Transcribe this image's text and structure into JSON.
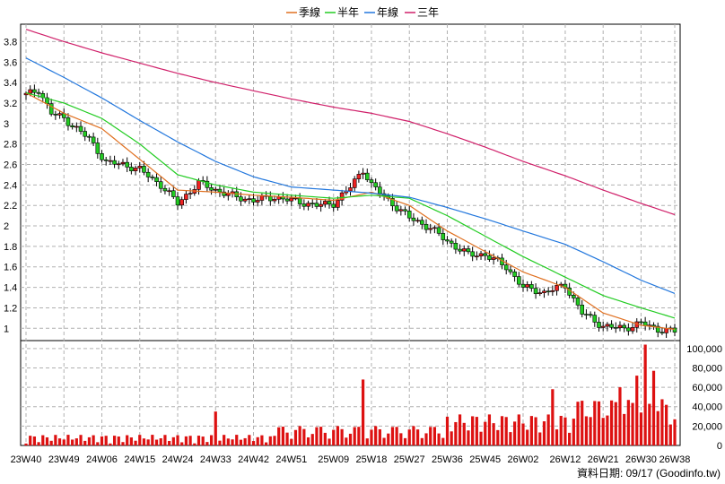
{
  "legend": [
    {
      "label": "季線",
      "color": "#e07020"
    },
    {
      "label": "半年",
      "color": "#22cc22"
    },
    {
      "label": "年線",
      "color": "#2277dd"
    },
    {
      "label": "三年",
      "color": "#d0206a"
    }
  ],
  "source_text": "資料日期: 09/17  (Goodinfo.tw)",
  "colors": {
    "up": "#ee2222",
    "down": "#22cc22",
    "volume": "#dd1111",
    "grid": "#b0b0b0"
  },
  "chart_data": [
    {
      "type": "candlestick",
      "title": "",
      "xlabel": "",
      "ylabel": "",
      "ylim": [
        0.88,
        3.97
      ],
      "y_ticks": [
        1,
        1.2,
        1.4,
        1.6,
        1.8,
        2,
        2.2,
        2.4,
        2.6,
        2.8,
        3,
        3.2,
        3.4,
        3.6,
        3.8
      ],
      "x_ticks": [
        "23W40",
        "23W49",
        "24W06",
        "24W15",
        "24W24",
        "24W33",
        "24W42",
        "24W51",
        "25W09",
        "25W18",
        "25W27",
        "25W36",
        "25W45",
        "26W02",
        "26W12",
        "26W21",
        "26W30",
        "26W38"
      ],
      "grid": true,
      "close_approx": [
        {
          "week": "23W40",
          "value": 3.28
        },
        {
          "week": "23W43",
          "value": 3.33
        },
        {
          "week": "23W46",
          "value": 3.1
        },
        {
          "week": "23W49",
          "value": 3.05
        },
        {
          "week": "24W03",
          "value": 2.85
        },
        {
          "week": "24W07",
          "value": 2.62
        },
        {
          "week": "24W11",
          "value": 2.6
        },
        {
          "week": "24W15",
          "value": 2.55
        },
        {
          "week": "24W20",
          "value": 2.4
        },
        {
          "week": "24W24",
          "value": 2.22
        },
        {
          "week": "24W29",
          "value": 2.42
        },
        {
          "week": "24W33",
          "value": 2.35
        },
        {
          "week": "24W38",
          "value": 2.28
        },
        {
          "week": "24W42",
          "value": 2.25
        },
        {
          "week": "24W47",
          "value": 2.28
        },
        {
          "week": "24W51",
          "value": 2.25
        },
        {
          "week": "25W05",
          "value": 2.2
        },
        {
          "week": "25W09",
          "value": 2.22
        },
        {
          "week": "25W13",
          "value": 2.38
        },
        {
          "week": "25W16",
          "value": 2.55
        },
        {
          "week": "25W18",
          "value": 2.4
        },
        {
          "week": "25W22",
          "value": 2.25
        },
        {
          "week": "25W27",
          "value": 2.08
        },
        {
          "week": "25W32",
          "value": 1.98
        },
        {
          "week": "25W36",
          "value": 1.85
        },
        {
          "week": "25W41",
          "value": 1.72
        },
        {
          "week": "25W45",
          "value": 1.72
        },
        {
          "week": "25W50",
          "value": 1.6
        },
        {
          "week": "26W02",
          "value": 1.4
        },
        {
          "week": "26W07",
          "value": 1.35
        },
        {
          "week": "26W12",
          "value": 1.42
        },
        {
          "week": "26W16",
          "value": 1.15
        },
        {
          "week": "26W21",
          "value": 1.02
        },
        {
          "week": "26W26",
          "value": 1.0
        },
        {
          "week": "26W30",
          "value": 1.05
        },
        {
          "week": "26W34",
          "value": 0.99
        },
        {
          "week": "26W38",
          "value": 0.97
        }
      ],
      "series": [
        {
          "name": "季線",
          "values": [
            {
              "week": "23W40",
              "value": 3.3
            },
            {
              "week": "23W49",
              "value": 3.1
            },
            {
              "week": "24W06",
              "value": 2.95
            },
            {
              "week": "24W15",
              "value": 2.65
            },
            {
              "week": "24W24",
              "value": 2.35
            },
            {
              "week": "24W33",
              "value": 2.33
            },
            {
              "week": "24W42",
              "value": 2.3
            },
            {
              "week": "24W51",
              "value": 2.28
            },
            {
              "week": "25W09",
              "value": 2.25
            },
            {
              "week": "25W18",
              "value": 2.33
            },
            {
              "week": "25W27",
              "value": 2.2
            },
            {
              "week": "25W36",
              "value": 1.95
            },
            {
              "week": "25W45",
              "value": 1.75
            },
            {
              "week": "26W02",
              "value": 1.55
            },
            {
              "week": "26W12",
              "value": 1.4
            },
            {
              "week": "26W21",
              "value": 1.15
            },
            {
              "week": "26W30",
              "value": 1.03
            },
            {
              "week": "26W38",
              "value": 0.99
            }
          ]
        },
        {
          "name": "半年",
          "values": [
            {
              "week": "23W40",
              "value": 3.3
            },
            {
              "week": "23W49",
              "value": 3.2
            },
            {
              "week": "24W06",
              "value": 3.05
            },
            {
              "week": "24W15",
              "value": 2.8
            },
            {
              "week": "24W24",
              "value": 2.5
            },
            {
              "week": "24W33",
              "value": 2.4
            },
            {
              "week": "24W42",
              "value": 2.33
            },
            {
              "week": "24W51",
              "value": 2.3
            },
            {
              "week": "25W09",
              "value": 2.27
            },
            {
              "week": "25W18",
              "value": 2.3
            },
            {
              "week": "25W27",
              "value": 2.27
            },
            {
              "week": "25W36",
              "value": 2.1
            },
            {
              "week": "25W45",
              "value": 1.9
            },
            {
              "week": "26W02",
              "value": 1.7
            },
            {
              "week": "26W12",
              "value": 1.5
            },
            {
              "week": "26W21",
              "value": 1.32
            },
            {
              "week": "26W30",
              "value": 1.2
            },
            {
              "week": "26W38",
              "value": 1.1
            }
          ]
        },
        {
          "name": "年線",
          "values": [
            {
              "week": "23W40",
              "value": 3.64
            },
            {
              "week": "23W49",
              "value": 3.45
            },
            {
              "week": "24W06",
              "value": 3.25
            },
            {
              "week": "24W15",
              "value": 3.03
            },
            {
              "week": "24W24",
              "value": 2.82
            },
            {
              "week": "24W33",
              "value": 2.63
            },
            {
              "week": "24W42",
              "value": 2.48
            },
            {
              "week": "24W51",
              "value": 2.38
            },
            {
              "week": "25W09",
              "value": 2.35
            },
            {
              "week": "25W18",
              "value": 2.32
            },
            {
              "week": "25W27",
              "value": 2.28
            },
            {
              "week": "25W36",
              "value": 2.18
            },
            {
              "week": "25W45",
              "value": 2.07
            },
            {
              "week": "26W02",
              "value": 1.95
            },
            {
              "week": "26W12",
              "value": 1.82
            },
            {
              "week": "26W21",
              "value": 1.65
            },
            {
              "week": "26W30",
              "value": 1.47
            },
            {
              "week": "26W38",
              "value": 1.34
            }
          ]
        },
        {
          "name": "三年",
          "values": [
            {
              "week": "23W40",
              "value": 3.92
            },
            {
              "week": "23W49",
              "value": 3.8
            },
            {
              "week": "24W06",
              "value": 3.69
            },
            {
              "week": "24W15",
              "value": 3.59
            },
            {
              "week": "24W24",
              "value": 3.49
            },
            {
              "week": "24W33",
              "value": 3.4
            },
            {
              "week": "24W42",
              "value": 3.32
            },
            {
              "week": "24W51",
              "value": 3.24
            },
            {
              "week": "25W09",
              "value": 3.16
            },
            {
              "week": "25W18",
              "value": 3.1
            },
            {
              "week": "25W27",
              "value": 3.02
            },
            {
              "week": "25W36",
              "value": 2.9
            },
            {
              "week": "25W45",
              "value": 2.77
            },
            {
              "week": "26W02",
              "value": 2.63
            },
            {
              "week": "26W12",
              "value": 2.49
            },
            {
              "week": "26W21",
              "value": 2.35
            },
            {
              "week": "26W30",
              "value": 2.22
            },
            {
              "week": "26W38",
              "value": 2.11
            }
          ]
        }
      ]
    },
    {
      "type": "bar",
      "title": "",
      "ylim": [
        0,
        110000
      ],
      "y_ticks": [
        0,
        20000,
        40000,
        60000,
        80000,
        100000
      ],
      "y_tick_labels": [
        "0",
        "20,000",
        "40,000",
        "60,000",
        "80,000",
        "100,000"
      ],
      "x_ticks": [
        "23W40",
        "23W49",
        "24W06",
        "24W15",
        "24W24",
        "24W33",
        "24W42",
        "24W51",
        "25W09",
        "25W18",
        "25W27",
        "25W36",
        "25W45",
        "26W02",
        "26W12",
        "26W21",
        "26W30",
        "26W38"
      ],
      "values_approx": [
        {
          "week": "24W33",
          "value": 35000
        },
        {
          "week": "25W16",
          "value": 68000
        },
        {
          "week": "26W09",
          "value": 58000
        },
        {
          "week": "26W25",
          "value": 60000
        },
        {
          "week": "26W29",
          "value": 72000
        },
        {
          "week": "26W31",
          "value": 104000
        },
        {
          "week": "26W33",
          "value": 77000
        },
        {
          "week": "26W38",
          "value": 27000
        }
      ]
    }
  ]
}
